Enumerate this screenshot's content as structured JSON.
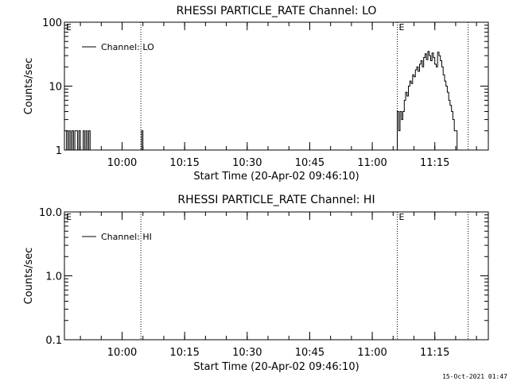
{
  "footer_timestamp": "15-Oct-2021 01:47",
  "chart_data": [
    {
      "type": "line",
      "title": "RHESSI PARTICLE_RATE Channel: LO",
      "xlabel": "Start Time (20-Apr-02 09:46:10)",
      "ylabel": "Counts/sec",
      "yscale": "log",
      "ylim": [
        1,
        100
      ],
      "y_ticks": [
        1,
        10,
        100
      ],
      "y_tick_labels": [
        "1",
        "10",
        "100"
      ],
      "xlim": [
        "09:46:10",
        "11:27:50"
      ],
      "x_ticks": [
        "10:00",
        "10:15",
        "10:30",
        "10:45",
        "11:00",
        "11:15"
      ],
      "legend": {
        "label": "Channel: LO",
        "position": "top-left"
      },
      "markers": [
        {
          "time": "10:04:30",
          "label": ""
        },
        {
          "time": "11:06:00",
          "label": "E"
        },
        {
          "time": "11:23:00",
          "label": ""
        }
      ],
      "corner_label": "E",
      "series": [
        {
          "name": "Channel: LO",
          "x": [
            "09:46:20",
            "09:46:40",
            "09:47:00",
            "09:47:20",
            "09:47:40",
            "09:48:00",
            "09:48:20",
            "09:48:40",
            "09:49:00",
            "09:49:20",
            "09:49:40",
            "09:50:00",
            "09:50:20",
            "09:50:40",
            "09:51:00",
            "09:51:20",
            "09:51:40",
            "09:52:00",
            "09:52:20",
            "10:04:20",
            "10:04:40",
            "10:05:00",
            "11:05:40",
            "11:06:00",
            "11:06:20",
            "11:06:40",
            "11:07:00",
            "11:07:20",
            "11:07:40",
            "11:08:00",
            "11:08:20",
            "11:08:40",
            "11:09:00",
            "11:09:20",
            "11:09:40",
            "11:10:00",
            "11:10:20",
            "11:10:40",
            "11:11:00",
            "11:11:20",
            "11:11:40",
            "11:12:00",
            "11:12:20",
            "11:12:40",
            "11:13:00",
            "11:13:20",
            "11:13:40",
            "11:14:00",
            "11:14:20",
            "11:14:40",
            "11:15:00",
            "11:15:20",
            "11:15:40",
            "11:16:00",
            "11:16:20",
            "11:16:40",
            "11:17:00",
            "11:17:20",
            "11:17:40",
            "11:18:00",
            "11:18:20",
            "11:18:40",
            "11:19:00",
            "11:19:20",
            "11:19:40",
            "11:20:00",
            "11:20:20"
          ],
          "y": [
            1,
            2,
            1,
            2,
            1,
            2,
            1,
            2,
            2,
            1,
            2,
            1,
            1,
            2,
            1,
            2,
            1,
            2,
            1,
            1,
            2,
            1,
            1,
            4,
            2,
            4,
            3,
            4,
            6,
            8,
            7,
            10,
            12,
            11,
            15,
            14,
            18,
            20,
            17,
            22,
            25,
            20,
            28,
            32,
            26,
            35,
            30,
            25,
            33,
            28,
            22,
            20,
            34,
            30,
            25,
            20,
            15,
            12,
            10,
            8,
            6,
            5,
            4,
            3,
            2,
            2,
            1
          ]
        }
      ]
    },
    {
      "type": "line",
      "title": "RHESSI PARTICLE_RATE Channel: HI",
      "xlabel": "Start Time (20-Apr-02 09:46:10)",
      "ylabel": "Counts/sec",
      "yscale": "log",
      "ylim": [
        0.1,
        10
      ],
      "y_ticks": [
        0.1,
        1,
        10
      ],
      "y_tick_labels": [
        "0.1",
        "1.0",
        "10.0"
      ],
      "xlim": [
        "09:46:10",
        "11:27:50"
      ],
      "x_ticks": [
        "10:00",
        "10:15",
        "10:30",
        "10:45",
        "11:00",
        "11:15"
      ],
      "legend": {
        "label": "Channel: HI",
        "position": "top-left"
      },
      "markers": [
        {
          "time": "10:04:30",
          "label": ""
        },
        {
          "time": "11:06:00",
          "label": "E"
        },
        {
          "time": "11:23:00",
          "label": ""
        }
      ],
      "corner_label": "E",
      "series": [
        {
          "name": "Channel: HI",
          "x": [],
          "y": []
        }
      ]
    }
  ]
}
